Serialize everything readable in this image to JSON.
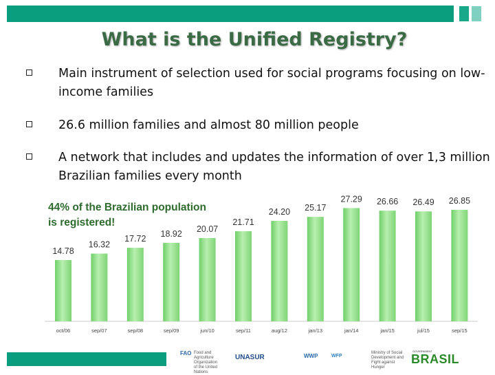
{
  "header": {
    "title": "What is the Unified Registry?"
  },
  "bullets": [
    "Main instrument of selection used for social programs focusing on low-income families",
    "26.6 million families and almost 80 million people",
    "A network that includes and updates the information of over 1,3 million Brazilian families every month"
  ],
  "note": "44% of the Brazilian population is registered!",
  "colors": {
    "accent_bar": "#0b9e7e",
    "bar_fill": "#8fdc8a",
    "title_color": "#3a6b45"
  },
  "chart_data": {
    "type": "bar",
    "categories": [
      "oct/06",
      "sep/07",
      "sep/08",
      "sep/09",
      "jun/10",
      "sep/11",
      "aug/12",
      "jan/13",
      "jan/14",
      "jan/15",
      "jul/15",
      "sep/15"
    ],
    "values": [
      14.78,
      16.32,
      17.72,
      18.92,
      20.07,
      21.71,
      24.2,
      25.17,
      27.29,
      26.66,
      26.49,
      26.85
    ],
    "value_labels": [
      "14.78",
      "16.32",
      "17.72",
      "18.92",
      "20.07",
      "21.71",
      "24.20",
      "25.17",
      "27.29",
      "26.66",
      "26.49",
      "26.85"
    ],
    "ylim": [
      0,
      31
    ],
    "grid": false,
    "legend": "none"
  },
  "footer_logos": {
    "fao": "FAO",
    "fao_text": "Food and Agriculture Organization of the United Nations",
    "unasur": "UNASUR",
    "wwp": "WWP",
    "wfp": "WFP",
    "ministry": "Ministry of Social Development and Fight against Hunger",
    "brasil": "BRASIL",
    "brasil_sub": "GOVERNMENT"
  }
}
